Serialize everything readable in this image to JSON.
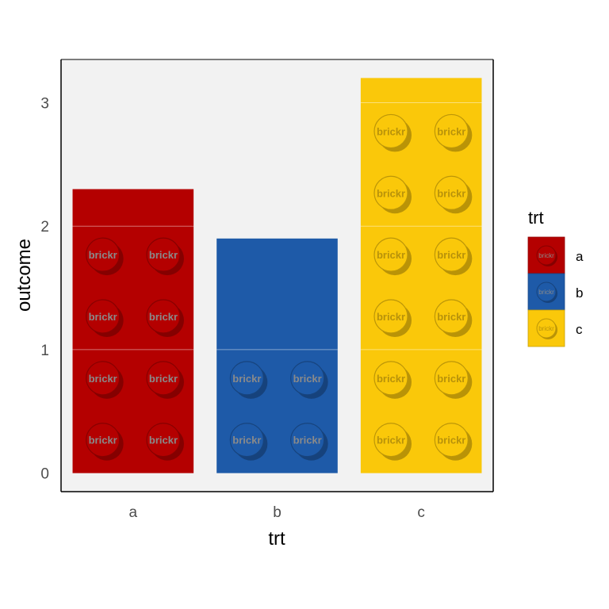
{
  "chart_data": {
    "type": "bar",
    "categories": [
      "a",
      "b",
      "c"
    ],
    "values": [
      2.3,
      1.9,
      3.2
    ],
    "xlabel": "trt",
    "ylabel": "outcome",
    "ylim": [
      -0.15,
      3.35
    ],
    "yticks": [
      0,
      1,
      2,
      3
    ],
    "legend": {
      "title": "trt",
      "position": "right",
      "entries": [
        "a",
        "b",
        "c"
      ]
    },
    "colors": {
      "a": "#b40000",
      "b": "#1e5aa8",
      "c": "#fac80a"
    },
    "panel_background": "#f2f2f2",
    "stud_label": "brickr",
    "grid": false
  }
}
